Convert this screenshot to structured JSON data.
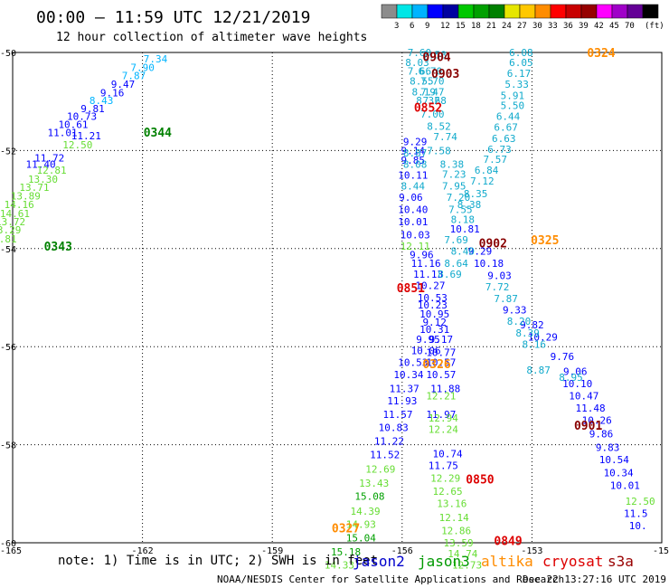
{
  "header": {
    "title": "00:00 — 11:59 UTC 12/21/2019",
    "subtitle": "12 hour collection of altimeter wave heights"
  },
  "colorbar": {
    "colors": [
      "#8c8c8c",
      "#00e6e6",
      "#00b4ff",
      "#0000ff",
      "#0000a0",
      "#00c800",
      "#00a000",
      "#008000",
      "#e6e600",
      "#ffc800",
      "#ff8c00",
      "#ff0000",
      "#c80000",
      "#960000",
      "#ff00ff",
      "#a000c8",
      "#640096",
      "#000000"
    ],
    "labels": [
      "3",
      "6",
      "9",
      "12",
      "15",
      "18",
      "21",
      "24",
      "27",
      "30",
      "33",
      "36",
      "39",
      "42",
      "45",
      "70",
      "(ft)"
    ]
  },
  "footer": {
    "note": "note: 1) Time is in UTC; 2) SWH is in feet",
    "missions": [
      {
        "name": "jason2",
        "color": "#0000cc"
      },
      {
        "name": "jason3",
        "color": "#009900"
      },
      {
        "name": "altika",
        "color": "#ff8c00"
      },
      {
        "name": "cryosat",
        "color": "#dd0000"
      },
      {
        "name": "s3a",
        "color": "#990000"
      }
    ],
    "credit": "NOAA/NESDIS Center for Satellite Applications and Research",
    "timestamp": "Dec 22 13:27:16 UTC 2019"
  },
  "chart_data": {
    "type": "scatter",
    "xlim": [
      -165,
      -150
    ],
    "ylim": [
      -60,
      -50
    ],
    "x_ticks": [
      "-165",
      "-162",
      "-159",
      "-156",
      "-153",
      "-15"
    ],
    "y_ticks": [
      "-50",
      "-52",
      "-54",
      "-56",
      "-58",
      "-60"
    ],
    "grid": true,
    "color_scale": {
      "unit": "ft",
      "thresholds": [
        3,
        6,
        9,
        12,
        15,
        18,
        21,
        24,
        27,
        30,
        33,
        36,
        39,
        42,
        45,
        70
      ]
    },
    "pass_labels": [
      {
        "text": "0904",
        "lon": -155.2,
        "lat": -50.08,
        "color": "#880000"
      },
      {
        "text": "0903",
        "lon": -155.0,
        "lat": -50.42,
        "color": "#880000"
      },
      {
        "text": "0852",
        "lon": -155.4,
        "lat": -51.12,
        "color": "#dd0000"
      },
      {
        "text": "0324",
        "lon": -151.4,
        "lat": -50.0,
        "color": "#ff8c00"
      },
      {
        "text": "0344",
        "lon": -161.65,
        "lat": -51.62,
        "color": "#008000"
      },
      {
        "text": "0325",
        "lon": -152.7,
        "lat": -53.82,
        "color": "#ff8c00"
      },
      {
        "text": "0343",
        "lon": -163.95,
        "lat": -53.95,
        "color": "#008000"
      },
      {
        "text": "0902",
        "lon": -153.9,
        "lat": -53.88,
        "color": "#880000"
      },
      {
        "text": "0851",
        "lon": -155.8,
        "lat": -54.8,
        "color": "#dd0000"
      },
      {
        "text": "0326",
        "lon": -155.2,
        "lat": -56.35,
        "color": "#ff8c00"
      },
      {
        "text": "0901",
        "lon": -151.7,
        "lat": -57.6,
        "color": "#880000"
      },
      {
        "text": "0850",
        "lon": -154.2,
        "lat": -58.7,
        "color": "#dd0000"
      },
      {
        "text": "0327",
        "lon": -157.3,
        "lat": -59.7,
        "color": "#ff8c00"
      },
      {
        "text": "0849",
        "lon": -153.55,
        "lat": -59.95,
        "color": "#dd0000"
      }
    ],
    "series": [
      {
        "name": "jason2",
        "points": [
          {
            "lon": -161.7,
            "lat": -50.13,
            "v": "7.34"
          },
          {
            "lon": -162.0,
            "lat": -50.3,
            "v": "7.90"
          },
          {
            "lon": -162.2,
            "lat": -50.47,
            "v": "7.87"
          },
          {
            "lon": -162.45,
            "lat": -50.65,
            "v": "9.47"
          },
          {
            "lon": -162.7,
            "lat": -50.82,
            "v": "9.16"
          },
          {
            "lon": -162.95,
            "lat": -50.98,
            "v": "8.43"
          },
          {
            "lon": -163.15,
            "lat": -51.14,
            "v": "9.81"
          },
          {
            "lon": -163.4,
            "lat": -51.3,
            "v": "10.73"
          },
          {
            "lon": -163.6,
            "lat": -51.47,
            "v": "10.61"
          },
          {
            "lon": -163.85,
            "lat": -51.63,
            "v": "11.01"
          },
          {
            "lon": -164.15,
            "lat": -52.15,
            "v": "11.72"
          },
          {
            "lon": -164.35,
            "lat": -52.28,
            "v": "11.40"
          },
          {
            "lon": -155.7,
            "lat": -51.82,
            "v": "9.29"
          },
          {
            "lon": -155.75,
            "lat": -52.0,
            "v": "9.14"
          },
          {
            "lon": -155.75,
            "lat": -52.2,
            "v": "9.85"
          },
          {
            "lon": -155.8,
            "lat": -52.95,
            "v": "9.06"
          },
          {
            "lon": -155.75,
            "lat": -53.2,
            "v": "10.40"
          },
          {
            "lon": -155.75,
            "lat": -53.45,
            "v": "10.01"
          },
          {
            "lon": -155.7,
            "lat": -53.72,
            "v": "10.03"
          },
          {
            "lon": -155.55,
            "lat": -54.12,
            "v": "9.96"
          },
          {
            "lon": -155.45,
            "lat": -54.3,
            "v": "11.16"
          },
          {
            "lon": -155.4,
            "lat": -54.52,
            "v": "11.13"
          },
          {
            "lon": -155.35,
            "lat": -54.75,
            "v": "10.27"
          },
          {
            "lon": -155.3,
            "lat": -55.0,
            "v": "10.53"
          },
          {
            "lon": -155.3,
            "lat": -55.15,
            "v": "10.23"
          },
          {
            "lon": -155.25,
            "lat": -55.33,
            "v": "10.95"
          },
          {
            "lon": -155.25,
            "lat": -55.5,
            "v": "9.12"
          },
          {
            "lon": -155.25,
            "lat": -55.65,
            "v": "10.31"
          },
          {
            "lon": -155.4,
            "lat": -55.85,
            "v": "9.95"
          },
          {
            "lon": -155.1,
            "lat": -55.85,
            "v": "9.17"
          },
          {
            "lon": -155.45,
            "lat": -56.08,
            "v": "10.06"
          },
          {
            "lon": -155.1,
            "lat": -56.12,
            "v": "10.77"
          },
          {
            "lon": -155.75,
            "lat": -56.32,
            "v": "10.53"
          },
          {
            "lon": -155.1,
            "lat": -56.32,
            "v": "10.57"
          },
          {
            "lon": -155.85,
            "lat": -56.57,
            "v": "10.34"
          },
          {
            "lon": -155.1,
            "lat": -56.57,
            "v": "10.57"
          },
          {
            "lon": -155.95,
            "lat": -56.85,
            "v": "11.37"
          },
          {
            "lon": -155.0,
            "lat": -56.85,
            "v": "11.88"
          },
          {
            "lon": -156.0,
            "lat": -57.1,
            "v": "11.93"
          },
          {
            "lon": -156.1,
            "lat": -57.38,
            "v": "11.57"
          },
          {
            "lon": -155.1,
            "lat": -57.38,
            "v": "11.97"
          },
          {
            "lon": -156.2,
            "lat": -57.65,
            "v": "10.83"
          },
          {
            "lon": -156.3,
            "lat": -57.92,
            "v": "11.22"
          },
          {
            "lon": -154.95,
            "lat": -58.18,
            "v": "10.74"
          },
          {
            "lon": -156.4,
            "lat": -58.2,
            "v": "11.52"
          },
          {
            "lon": -155.05,
            "lat": -58.42,
            "v": "11.75"
          },
          {
            "lon": -154.2,
            "lat": -54.05,
            "v": "9.29"
          },
          {
            "lon": -154.0,
            "lat": -54.3,
            "v": "10.18"
          },
          {
            "lon": -153.75,
            "lat": -54.55,
            "v": "9.03"
          },
          {
            "lon": -153.0,
            "lat": -55.55,
            "v": "9.82"
          },
          {
            "lon": -152.75,
            "lat": -55.8,
            "v": "10.29"
          },
          {
            "lon": -152.3,
            "lat": -56.2,
            "v": "9.76"
          },
          {
            "lon": -152.0,
            "lat": -56.5,
            "v": "9.06"
          },
          {
            "lon": -151.95,
            "lat": -56.75,
            "v": "10.10"
          },
          {
            "lon": -151.8,
            "lat": -57.0,
            "v": "10.47"
          },
          {
            "lon": -151.65,
            "lat": -57.25,
            "v": "11.48"
          },
          {
            "lon": -151.5,
            "lat": -57.5,
            "v": "10.26"
          },
          {
            "lon": -151.4,
            "lat": -57.78,
            "v": "9.86"
          },
          {
            "lon": -151.25,
            "lat": -58.05,
            "v": "9.83"
          },
          {
            "lon": -151.1,
            "lat": -58.3,
            "v": "10.54"
          },
          {
            "lon": -151.0,
            "lat": -58.57,
            "v": "10.34"
          },
          {
            "lon": -150.85,
            "lat": -58.83,
            "v": "10.01"
          },
          {
            "lon": -150.6,
            "lat": -59.4,
            "v": "11.5"
          },
          {
            "lon": -150.55,
            "lat": -59.65,
            "v": "10."
          }
        ]
      },
      {
        "name": "jason2-light",
        "points": [
          {
            "lon": -155.6,
            "lat": -50.0,
            "v": "7.60"
          },
          {
            "lon": -155.25,
            "lat": -50.05,
            "v": "7.58"
          },
          {
            "lon": -155.65,
            "lat": -50.2,
            "v": "8.03"
          },
          {
            "lon": -155.6,
            "lat": -50.38,
            "v": "7.66"
          },
          {
            "lon": -155.35,
            "lat": -50.38,
            "v": "6.70"
          },
          {
            "lon": -155.55,
            "lat": -50.58,
            "v": "8.55"
          },
          {
            "lon": -155.3,
            "lat": -50.58,
            "v": "7.70"
          },
          {
            "lon": -155.5,
            "lat": -50.8,
            "v": "8.19"
          },
          {
            "lon": -155.3,
            "lat": -50.8,
            "v": "7.47"
          },
          {
            "lon": -155.4,
            "lat": -50.98,
            "v": "8.32"
          },
          {
            "lon": -155.25,
            "lat": -50.98,
            "v": "7.68"
          },
          {
            "lon": -155.3,
            "lat": -51.25,
            "v": "7.00"
          },
          {
            "lon": -155.15,
            "lat": -51.5,
            "v": "8.52"
          },
          {
            "lon": -155.0,
            "lat": -51.72,
            "v": "7.74"
          },
          {
            "lon": -155.7,
            "lat": -52.05,
            "v": "8.87"
          },
          {
            "lon": -155.15,
            "lat": -52.0,
            "v": "7.58"
          },
          {
            "lon": -155.7,
            "lat": -52.28,
            "v": "8.08"
          },
          {
            "lon": -154.85,
            "lat": -52.28,
            "v": "8.38"
          },
          {
            "lon": -155.75,
            "lat": -52.5,
            "v": "10.11"
          },
          {
            "lon": -154.8,
            "lat": -52.48,
            "v": "7.23"
          },
          {
            "lon": -155.75,
            "lat": -52.72,
            "v": "8.44"
          },
          {
            "lon": -154.8,
            "lat": -52.72,
            "v": "7.95"
          },
          {
            "lon": -154.7,
            "lat": -52.95,
            "v": "7.20"
          },
          {
            "lon": -154.65,
            "lat": -53.2,
            "v": "7.55"
          },
          {
            "lon": -154.6,
            "lat": -53.4,
            "v": "8.18"
          },
          {
            "lon": -154.55,
            "lat": -53.6,
            "v": "10.81"
          },
          {
            "lon": -154.75,
            "lat": -53.82,
            "v": "7.69"
          },
          {
            "lon": -154.6,
            "lat": -54.05,
            "v": "8.40"
          },
          {
            "lon": -154.75,
            "lat": -54.3,
            "v": "8.64"
          },
          {
            "lon": -154.9,
            "lat": -54.52,
            "v": "8.69"
          },
          {
            "lon": -153.25,
            "lat": -50.0,
            "v": "6.08"
          },
          {
            "lon": -153.25,
            "lat": -50.2,
            "v": "6.05"
          },
          {
            "lon": -153.3,
            "lat": -50.42,
            "v": "6.17"
          },
          {
            "lon": -153.35,
            "lat": -50.65,
            "v": "5.33"
          },
          {
            "lon": -153.45,
            "lat": -50.88,
            "v": "5.91"
          },
          {
            "lon": -153.45,
            "lat": -51.08,
            "v": "5.50"
          },
          {
            "lon": -153.55,
            "lat": -51.3,
            "v": "6.44"
          },
          {
            "lon": -153.6,
            "lat": -51.52,
            "v": "6.67"
          },
          {
            "lon": -153.65,
            "lat": -51.75,
            "v": "6.63"
          },
          {
            "lon": -153.75,
            "lat": -51.97,
            "v": "6.73"
          },
          {
            "lon": -153.85,
            "lat": -52.18,
            "v": "7.57"
          },
          {
            "lon": -154.05,
            "lat": -52.4,
            "v": "6.84"
          },
          {
            "lon": -154.15,
            "lat": -52.62,
            "v": "7.12"
          },
          {
            "lon": -154.3,
            "lat": -52.88,
            "v": "8.35"
          },
          {
            "lon": -154.45,
            "lat": -53.1,
            "v": "8.38"
          },
          {
            "lon": -153.8,
            "lat": -54.78,
            "v": "7.72"
          },
          {
            "lon": -153.6,
            "lat": -55.02,
            "v": "7.87"
          },
          {
            "lon": -153.4,
            "lat": -55.25,
            "v": "9.33"
          },
          {
            "lon": -153.3,
            "lat": -55.48,
            "v": "8.20"
          },
          {
            "lon": -153.1,
            "lat": -55.72,
            "v": "8.39"
          },
          {
            "lon": -152.95,
            "lat": -55.95,
            "v": "8.16"
          },
          {
            "lon": -152.85,
            "lat": -56.48,
            "v": "8.87"
          },
          {
            "lon": -152.1,
            "lat": -56.62,
            "v": "8.95"
          }
        ]
      },
      {
        "name": "jason3",
        "points": [
          {
            "lon": -163.3,
            "lat": -51.7,
            "v": "11.21"
          },
          {
            "lon": -163.5,
            "lat": -51.88,
            "v": "12.50"
          },
          {
            "lon": -164.1,
            "lat": -52.4,
            "v": "12.81"
          },
          {
            "lon": -164.3,
            "lat": -52.58,
            "v": "13.30"
          },
          {
            "lon": -164.5,
            "lat": -52.75,
            "v": "13.71"
          },
          {
            "lon": -164.7,
            "lat": -52.92,
            "v": "13.89"
          },
          {
            "lon": -164.85,
            "lat": -53.1,
            "v": "14.16"
          },
          {
            "lon": -164.95,
            "lat": -53.28,
            "v": "14.61"
          },
          {
            "lon": -165.05,
            "lat": -53.45,
            "v": "13.72"
          },
          {
            "lon": -165.15,
            "lat": -53.62,
            "v": "13.29"
          },
          {
            "lon": -165.25,
            "lat": -53.8,
            "v": "13.81"
          },
          {
            "lon": -155.7,
            "lat": -53.95,
            "v": "12.11"
          },
          {
            "lon": -155.1,
            "lat": -57.0,
            "v": "12.21"
          },
          {
            "lon": -155.05,
            "lat": -57.45,
            "v": "12.94"
          },
          {
            "lon": -155.05,
            "lat": -57.68,
            "v": "12.24"
          },
          {
            "lon": -156.5,
            "lat": -58.5,
            "v": "12.69"
          },
          {
            "lon": -155.0,
            "lat": -58.68,
            "v": "12.29"
          },
          {
            "lon": -156.65,
            "lat": -58.78,
            "v": "13.43"
          },
          {
            "lon": -154.95,
            "lat": -58.95,
            "v": "12.65"
          },
          {
            "lon": -156.75,
            "lat": -59.05,
            "v": "15.08"
          },
          {
            "lon": -154.85,
            "lat": -59.2,
            "v": "13.16"
          },
          {
            "lon": -156.85,
            "lat": -59.35,
            "v": "14.39"
          },
          {
            "lon": -154.8,
            "lat": -59.48,
            "v": "12.14"
          },
          {
            "lon": -156.95,
            "lat": -59.62,
            "v": "14.93"
          },
          {
            "lon": -154.75,
            "lat": -59.75,
            "v": "12.86"
          },
          {
            "lon": -156.95,
            "lat": -59.9,
            "v": "15.04"
          },
          {
            "lon": -154.7,
            "lat": -60.0,
            "v": "13.59"
          },
          {
            "lon": -157.3,
            "lat": -60.18,
            "v": "15.18"
          },
          {
            "lon": -154.6,
            "lat": -60.22,
            "v": "14.74"
          },
          {
            "lon": -157.45,
            "lat": -60.45,
            "v": "14.33"
          },
          {
            "lon": -154.5,
            "lat": -60.45,
            "v": "12.73"
          },
          {
            "lon": -150.5,
            "lat": -59.15,
            "v": "12.50"
          }
        ]
      }
    ]
  }
}
